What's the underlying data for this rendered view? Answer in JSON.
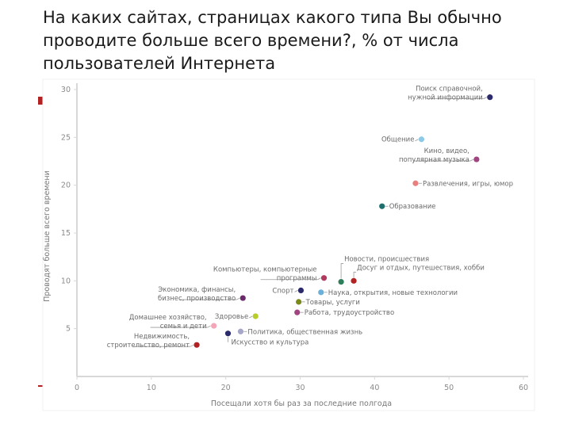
{
  "title": "На каких сайтах, страницах какого типа Вы обычно проводите больше всего времени?, % от числа пользователей Интернета",
  "chart_data": {
    "type": "scatter",
    "xlabel": "Посещали хотя бы раз за последние полгода",
    "ylabel": "Проводят больше всего времени",
    "xlim": [
      0,
      60
    ],
    "ylim": [
      0,
      30
    ],
    "xticks": [
      "0",
      "10",
      "20",
      "30",
      "40",
      "50",
      "60"
    ],
    "yticks": [
      "5",
      "10",
      "15",
      "20",
      "25",
      "30"
    ],
    "grid": false,
    "points": [
      {
        "label": "Поиск справочной, нужной информации",
        "lines": [
          "Поиск справочной,",
          "нужной информации"
        ],
        "x": 55.5,
        "y": 29.2,
        "color": "#2b2a6b",
        "side": "left"
      },
      {
        "label": "Общение",
        "lines": [
          "Общение"
        ],
        "x": 46.3,
        "y": 24.8,
        "color": "#8ecae6",
        "side": "left"
      },
      {
        "label": "Кино, видео, популярная музыка",
        "lines": [
          "Кино, видео,",
          "популярная музыка"
        ],
        "x": 53.7,
        "y": 22.7,
        "color": "#a0457f",
        "side": "left"
      },
      {
        "label": "Развлечения, игры, юмор",
        "lines": [
          "Развлечения, игры, юмор"
        ],
        "x": 45.5,
        "y": 20.2,
        "color": "#e88080",
        "side": "right"
      },
      {
        "label": "Образование",
        "lines": [
          "Образование"
        ],
        "x": 41.0,
        "y": 17.8,
        "color": "#1f6f6f",
        "side": "right"
      },
      {
        "label": "Досуг и отдых, путешествия, хобби",
        "lines": [
          "Досуг и отдых, путешествия, хобби"
        ],
        "x": 37.2,
        "y": 10.0,
        "color": "#b22222",
        "side": "up"
      },
      {
        "label": "Новости, происшествия",
        "lines": [
          "Новости, происшествия"
        ],
        "x": 35.5,
        "y": 9.9,
        "color": "#2e7d5b",
        "side": "up"
      },
      {
        "label": "Компьютеры, компьютерные программы",
        "lines": [
          "Компьютеры, компьютерные",
          "программы"
        ],
        "x": 33.2,
        "y": 10.3,
        "color": "#b23a5e",
        "side": "left"
      },
      {
        "label": "Спорт",
        "lines": [
          "Спорт"
        ],
        "x": 30.1,
        "y": 9.0,
        "color": "#2b2a6b",
        "side": "left"
      },
      {
        "label": "Наука, открытия, новые технологии",
        "lines": [
          "Наука, открытия, новые технологии"
        ],
        "x": 32.8,
        "y": 8.8,
        "color": "#6ab0d8",
        "side": "right"
      },
      {
        "label": "Товары, услуги",
        "lines": [
          "Товары, услуги"
        ],
        "x": 29.8,
        "y": 7.8,
        "color": "#7a8a1a",
        "side": "right"
      },
      {
        "label": "Работа, трудоустройство",
        "lines": [
          "Работа, трудоустройство"
        ],
        "x": 29.6,
        "y": 6.7,
        "color": "#a0457f",
        "side": "right"
      },
      {
        "label": "Экономика, финансы, бизнес, производство",
        "lines": [
          "Экономика, финансы,",
          "бизнес, производство"
        ],
        "x": 22.3,
        "y": 8.2,
        "color": "#6b2a6b",
        "side": "left"
      },
      {
        "label": "Здоровье",
        "lines": [
          "Здоровье"
        ],
        "x": 24.0,
        "y": 6.3,
        "color": "#b8cc2a",
        "side": "left"
      },
      {
        "label": "Домашнее хозяйство, семья и дети",
        "lines": [
          "Домашнее хозяйство,",
          "семья и дети"
        ],
        "x": 18.4,
        "y": 5.3,
        "color": "#f4a6b8",
        "side": "left"
      },
      {
        "label": "Политика, общественная жизнь",
        "lines": [
          "Политика, общественная жизнь"
        ],
        "x": 22.0,
        "y": 4.7,
        "color": "#a6a6c8",
        "side": "right"
      },
      {
        "label": "Искусство и культура",
        "lines": [
          "Искусство и культура"
        ],
        "x": 20.3,
        "y": 4.5,
        "color": "#2b2a6b",
        "side": "down"
      },
      {
        "label": "Недвижимость, строительство, ремонт",
        "lines": [
          "Недвижимость,",
          "строительство, ремонт"
        ],
        "x": 16.1,
        "y": 3.3,
        "color": "#b22222",
        "side": "left"
      }
    ]
  }
}
